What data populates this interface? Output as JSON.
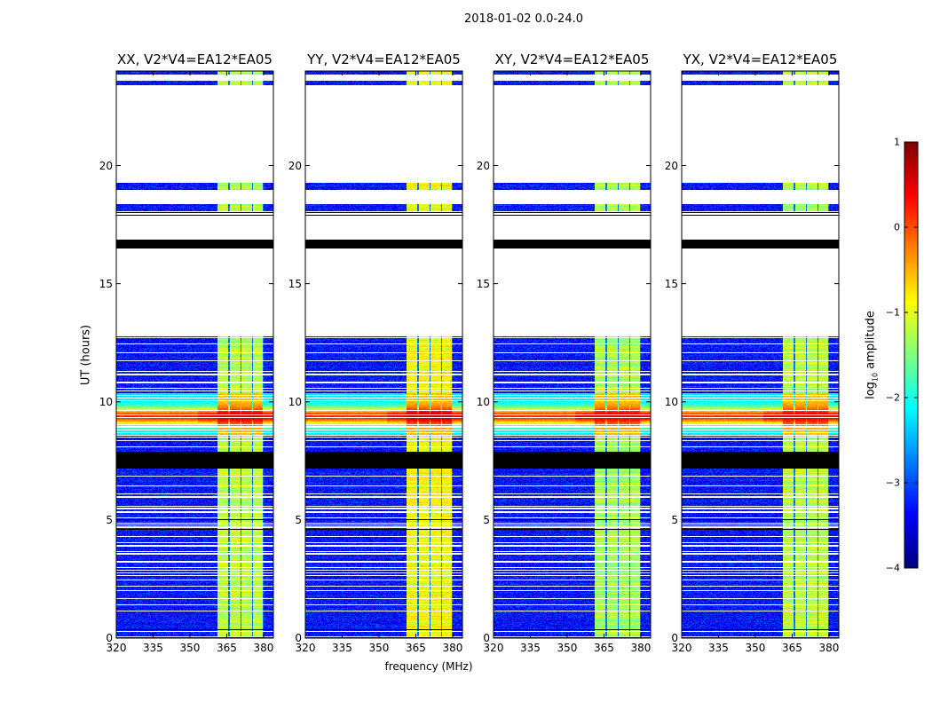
{
  "chart_data": {
    "type": "heatmap",
    "title": "2018-01-02 0.0-24.0",
    "xlabel": "frequency (MHz)",
    "ylabel": "UT (hours)",
    "xlim": [
      320,
      384
    ],
    "ylim": [
      0,
      24
    ],
    "xticks": [
      "320",
      "335",
      "350",
      "365",
      "380"
    ],
    "xtick_values": [
      320,
      335,
      350,
      365,
      380
    ],
    "yticks": [
      "0",
      "5",
      "10",
      "15",
      "20"
    ],
    "ytick_values": [
      0,
      5,
      10,
      15,
      20
    ],
    "colorbar": {
      "label_main": "log",
      "label_sub": "10",
      "label_rest": " amplitude",
      "range": [
        -4,
        1
      ],
      "ticks": [
        "1",
        "0",
        "−1",
        "−2",
        "−3",
        "−4"
      ],
      "tick_values": [
        1,
        0,
        -1,
        -2,
        -3,
        -4
      ],
      "colormap": "jet"
    },
    "panels": [
      {
        "title": "XX, V2*V4=EA12*EA05",
        "rfi_level": -1.2,
        "burst_level": 0.6
      },
      {
        "title": "YY, V2*V4=EA12*EA05",
        "rfi_level": -0.9,
        "burst_level": 0.7
      },
      {
        "title": "XY, V2*V4=EA12*EA05",
        "rfi_level": -1.3,
        "burst_level": 0.5
      },
      {
        "title": "YX, V2*V4=EA12*EA05",
        "rfi_level": -1.2,
        "burst_level": 0.5
      }
    ],
    "background_level": -3.3,
    "rfi_subbands_mhz": [
      [
        361,
        365.3
      ],
      [
        366,
        370.3
      ],
      [
        370.8,
        375
      ],
      [
        375.5,
        379.5
      ]
    ],
    "burst_hours": [
      8.6,
      10.4
    ],
    "data_hours": [
      [
        0,
        12.8
      ],
      [
        18.1,
        18.4
      ],
      [
        19.0,
        19.3
      ],
      [
        23.4,
        23.6
      ],
      [
        23.85,
        24
      ]
    ],
    "black_flag_hours": [
      [
        16.5,
        16.9
      ],
      [
        17.9,
        17.95
      ],
      [
        18.0,
        18.05
      ],
      [
        7.2,
        7.9
      ],
      [
        4.6,
        4.65
      ],
      [
        5.0,
        5.05
      ],
      [
        0.35,
        0.4
      ],
      [
        0.0,
        0.05
      ]
    ]
  }
}
